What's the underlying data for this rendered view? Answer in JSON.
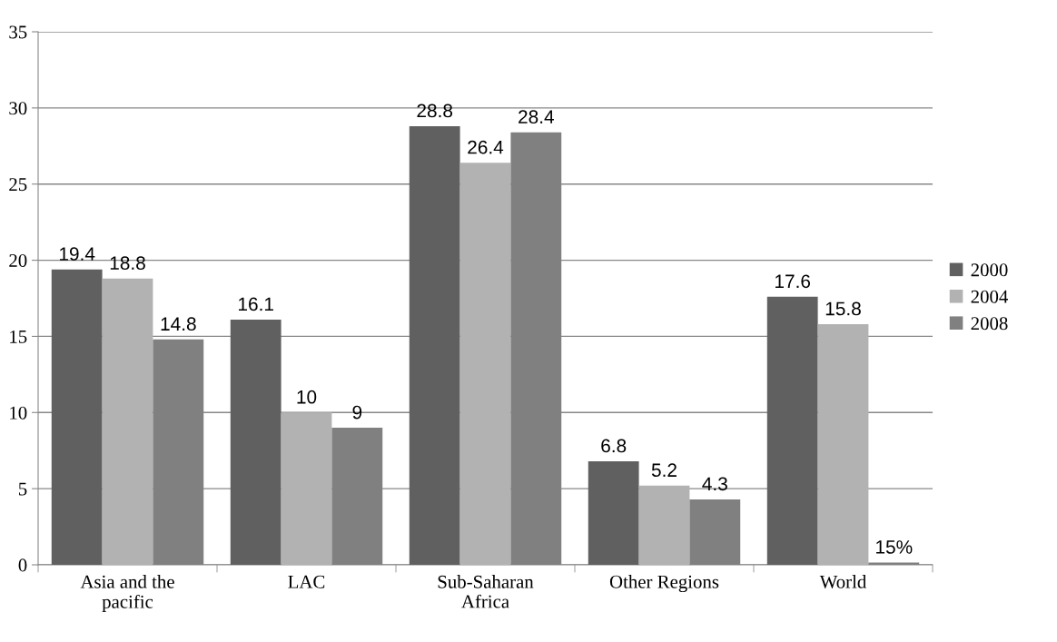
{
  "chart_data": {
    "type": "bar",
    "categories": [
      "Asia and the\npacific",
      "LAC",
      "Sub-Saharan\nAfrica",
      "Other Regions",
      "World"
    ],
    "series": [
      {
        "name": "2000",
        "color": "#606060",
        "values": [
          19.4,
          16.1,
          28.8,
          6.8,
          17.6
        ],
        "value_labels": [
          "19.4",
          "16.1",
          "28.8",
          "6.8",
          "17.6"
        ]
      },
      {
        "name": "2004",
        "color": "#b2b2b2",
        "values": [
          18.8,
          10,
          26.4,
          5.2,
          15.8
        ],
        "value_labels": [
          "18.8",
          "10",
          "26.4",
          "5.2",
          "15.8"
        ]
      },
      {
        "name": "2008",
        "color": "#808080",
        "values": [
          14.8,
          9,
          28.4,
          4.3,
          0.15
        ],
        "value_labels": [
          "14.8",
          "9",
          "28.4",
          "4.3",
          "15%"
        ]
      }
    ],
    "ylim": [
      0,
      35
    ],
    "yticks": [
      0,
      5,
      10,
      15,
      20,
      25,
      30,
      35
    ],
    "grid": "y",
    "legend": "right"
  }
}
